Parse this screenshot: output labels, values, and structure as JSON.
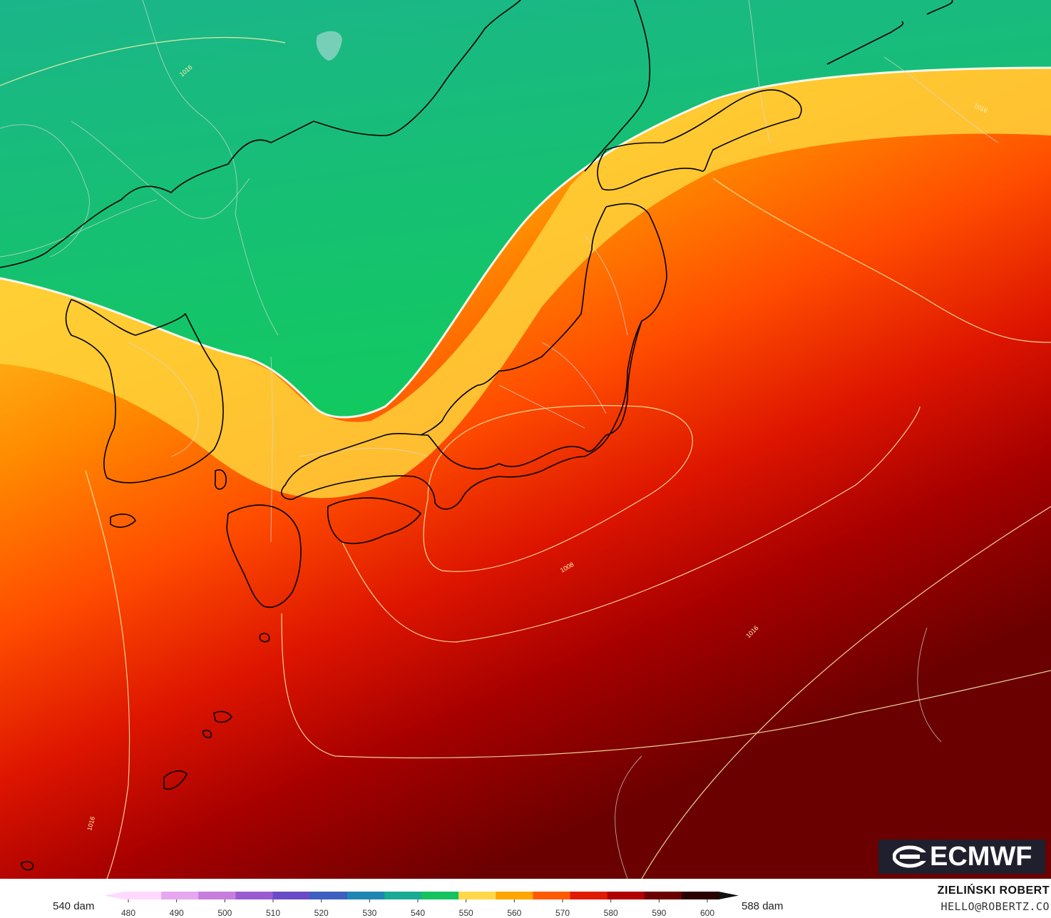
{
  "map": {
    "colors": {
      "green_deep": "#12c66a",
      "green_teal": "#1bb58a",
      "yellow": "#ffd84a",
      "orange": "#ffa600",
      "orange_red": "#ff5a00",
      "red": "#e01a00",
      "dark_red": "#9e0000",
      "deep_maroon": "#6a0000",
      "coast": "#000000",
      "border": "#cfcfcf",
      "isobar": "#fff3b0"
    },
    "isobar_labels": [
      "1016",
      "1016",
      "1008",
      "1016",
      "1016"
    ]
  },
  "logo": {
    "text": "ECMWF"
  },
  "colorbar": {
    "unit_left": "540 dam",
    "unit_right": "588 dam",
    "ticks": [
      "480",
      "490",
      "500",
      "510",
      "520",
      "530",
      "540",
      "550",
      "560",
      "570",
      "580",
      "590",
      "600"
    ],
    "colors": [
      "#ffd9ff",
      "#e7a6f0",
      "#c77ddc",
      "#9b5bd0",
      "#6a4bc7",
      "#3c5fc0",
      "#1f86b3",
      "#18aa93",
      "#14c35f",
      "#ffd84a",
      "#ffa600",
      "#ff5a00",
      "#e01a00",
      "#b00000",
      "#6a0000",
      "#2a0000"
    ]
  },
  "credit": {
    "name": "ZIELIŃSKI ROBERT",
    "email": "HELLO@ROBERTZ.CO"
  }
}
